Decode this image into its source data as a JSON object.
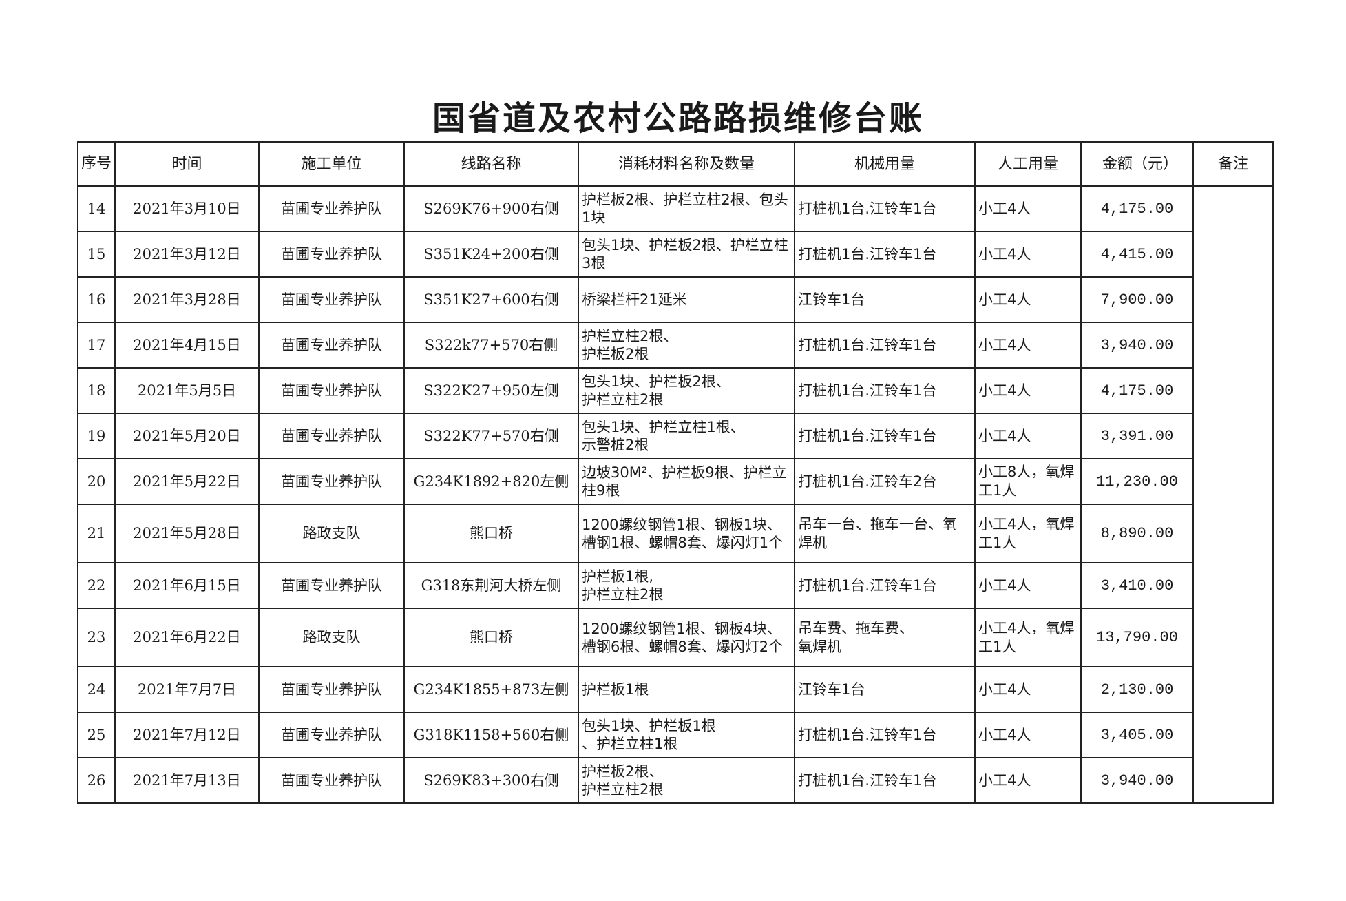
{
  "title": "国省道及农村公路路损维修台账",
  "headers": {
    "seq": "序号",
    "date": "时间",
    "unit": "施工单位",
    "route": "线路名称",
    "materials": "消耗材料名称及数量",
    "machinery": "机械用量",
    "labor": "人工用量",
    "amount": "金额（元）",
    "remarks": "备注"
  },
  "rows": [
    {
      "seq": "14",
      "date": "2021年3月10日",
      "unit": "苗圃专业养护队",
      "route": "S269K76+900右侧",
      "materials": "护栏板2根、护栏立柱2根、包头1块",
      "machinery": "打桩机1台.江铃车1台",
      "labor": "小工4人",
      "amount": "4,175.00"
    },
    {
      "seq": "15",
      "date": "2021年3月12日",
      "unit": "苗圃专业养护队",
      "route": "S351K24+200右侧",
      "materials": "包头1块、护栏板2根、护栏立柱3根",
      "machinery": "打桩机1台.江铃车1台",
      "labor": "小工4人",
      "amount": "4,415.00"
    },
    {
      "seq": "16",
      "date": "2021年3月28日",
      "unit": "苗圃专业养护队",
      "route": "S351K27+600右侧",
      "materials": "桥梁栏杆21延米",
      "machinery": "江铃车1台",
      "labor": "小工4人",
      "amount": "7,900.00"
    },
    {
      "seq": "17",
      "date": "2021年4月15日",
      "unit": "苗圃专业养护队",
      "route": "S322k77+570右侧",
      "materials": "护栏立柱2根、\n护栏板2根",
      "machinery": "打桩机1台.江铃车1台",
      "labor": "小工4人",
      "amount": "3,940.00"
    },
    {
      "seq": "18",
      "date": "2021年5月5日",
      "unit": "苗圃专业养护队",
      "route": "S322K27+950左侧",
      "materials": "包头1块、护栏板2根、\n护栏立柱2根",
      "machinery": "打桩机1台.江铃车1台",
      "labor": "小工4人",
      "amount": "4,175.00"
    },
    {
      "seq": "19",
      "date": "2021年5月20日",
      "unit": "苗圃专业养护队",
      "route": "S322K77+570右侧",
      "materials": "包头1块、护栏立柱1根、\n示警桩2根",
      "machinery": "打桩机1台.江铃车1台",
      "labor": "小工4人",
      "amount": "3,391.00"
    },
    {
      "seq": "20",
      "date": "2021年5月22日",
      "unit": "苗圃专业养护队",
      "route": "G234K1892+820左侧",
      "materials": "边坡30M²、护栏板9根、护栏立柱9根",
      "machinery": "打桩机1台.江铃车2台",
      "labor": "小工8人，氧焊工1人",
      "amount": "11,230.00"
    },
    {
      "seq": "21",
      "date": "2021年5月28日",
      "unit": "路政支队",
      "route": "熊口桥",
      "materials": "1200螺纹钢管1根、钢板1块、槽钢1根、螺帽8套、爆闪灯1个",
      "machinery": "吊车一台、拖车一台、氧焊机",
      "labor": "小工4人，氧焊工1人",
      "amount": "8,890.00"
    },
    {
      "seq": "22",
      "date": "2021年6月15日",
      "unit": "苗圃专业养护队",
      "route": "G318东荆河大桥左侧",
      "materials": "护栏板1根,\n护栏立柱2根",
      "machinery": "打桩机1台.江铃车1台",
      "labor": "小工4人",
      "amount": "3,410.00"
    },
    {
      "seq": "23",
      "date": "2021年6月22日",
      "unit": "路政支队",
      "route": "熊口桥",
      "materials": "1200螺纹钢管1根、钢板4块、槽钢6根、螺帽8套、爆闪灯2个",
      "machinery": "吊车费、拖车费、\n氧焊机",
      "labor": "小工4人，氧焊工1人",
      "amount": "13,790.00"
    },
    {
      "seq": "24",
      "date": "2021年7月7日",
      "unit": "苗圃专业养护队",
      "route": "G234K1855+873左侧",
      "materials": "护栏板1根",
      "machinery": "江铃车1台",
      "labor": "小工4人",
      "amount": "2,130.00"
    },
    {
      "seq": "25",
      "date": "2021年7月12日",
      "unit": "苗圃专业养护队",
      "route": "G318K1158+560右侧",
      "materials": "包头1块、护栏板1根\n、护栏立柱1根",
      "machinery": "打桩机1台.江铃车1台",
      "labor": "小工4人",
      "amount": "3,405.00"
    },
    {
      "seq": "26",
      "date": "2021年7月13日",
      "unit": "苗圃专业养护队",
      "route": "S269K83+300右侧",
      "materials": "护栏板2根、\n护栏立柱2根",
      "machinery": "打桩机1台.江铃车1台",
      "labor": "小工4人",
      "amount": "3,940.00"
    }
  ]
}
